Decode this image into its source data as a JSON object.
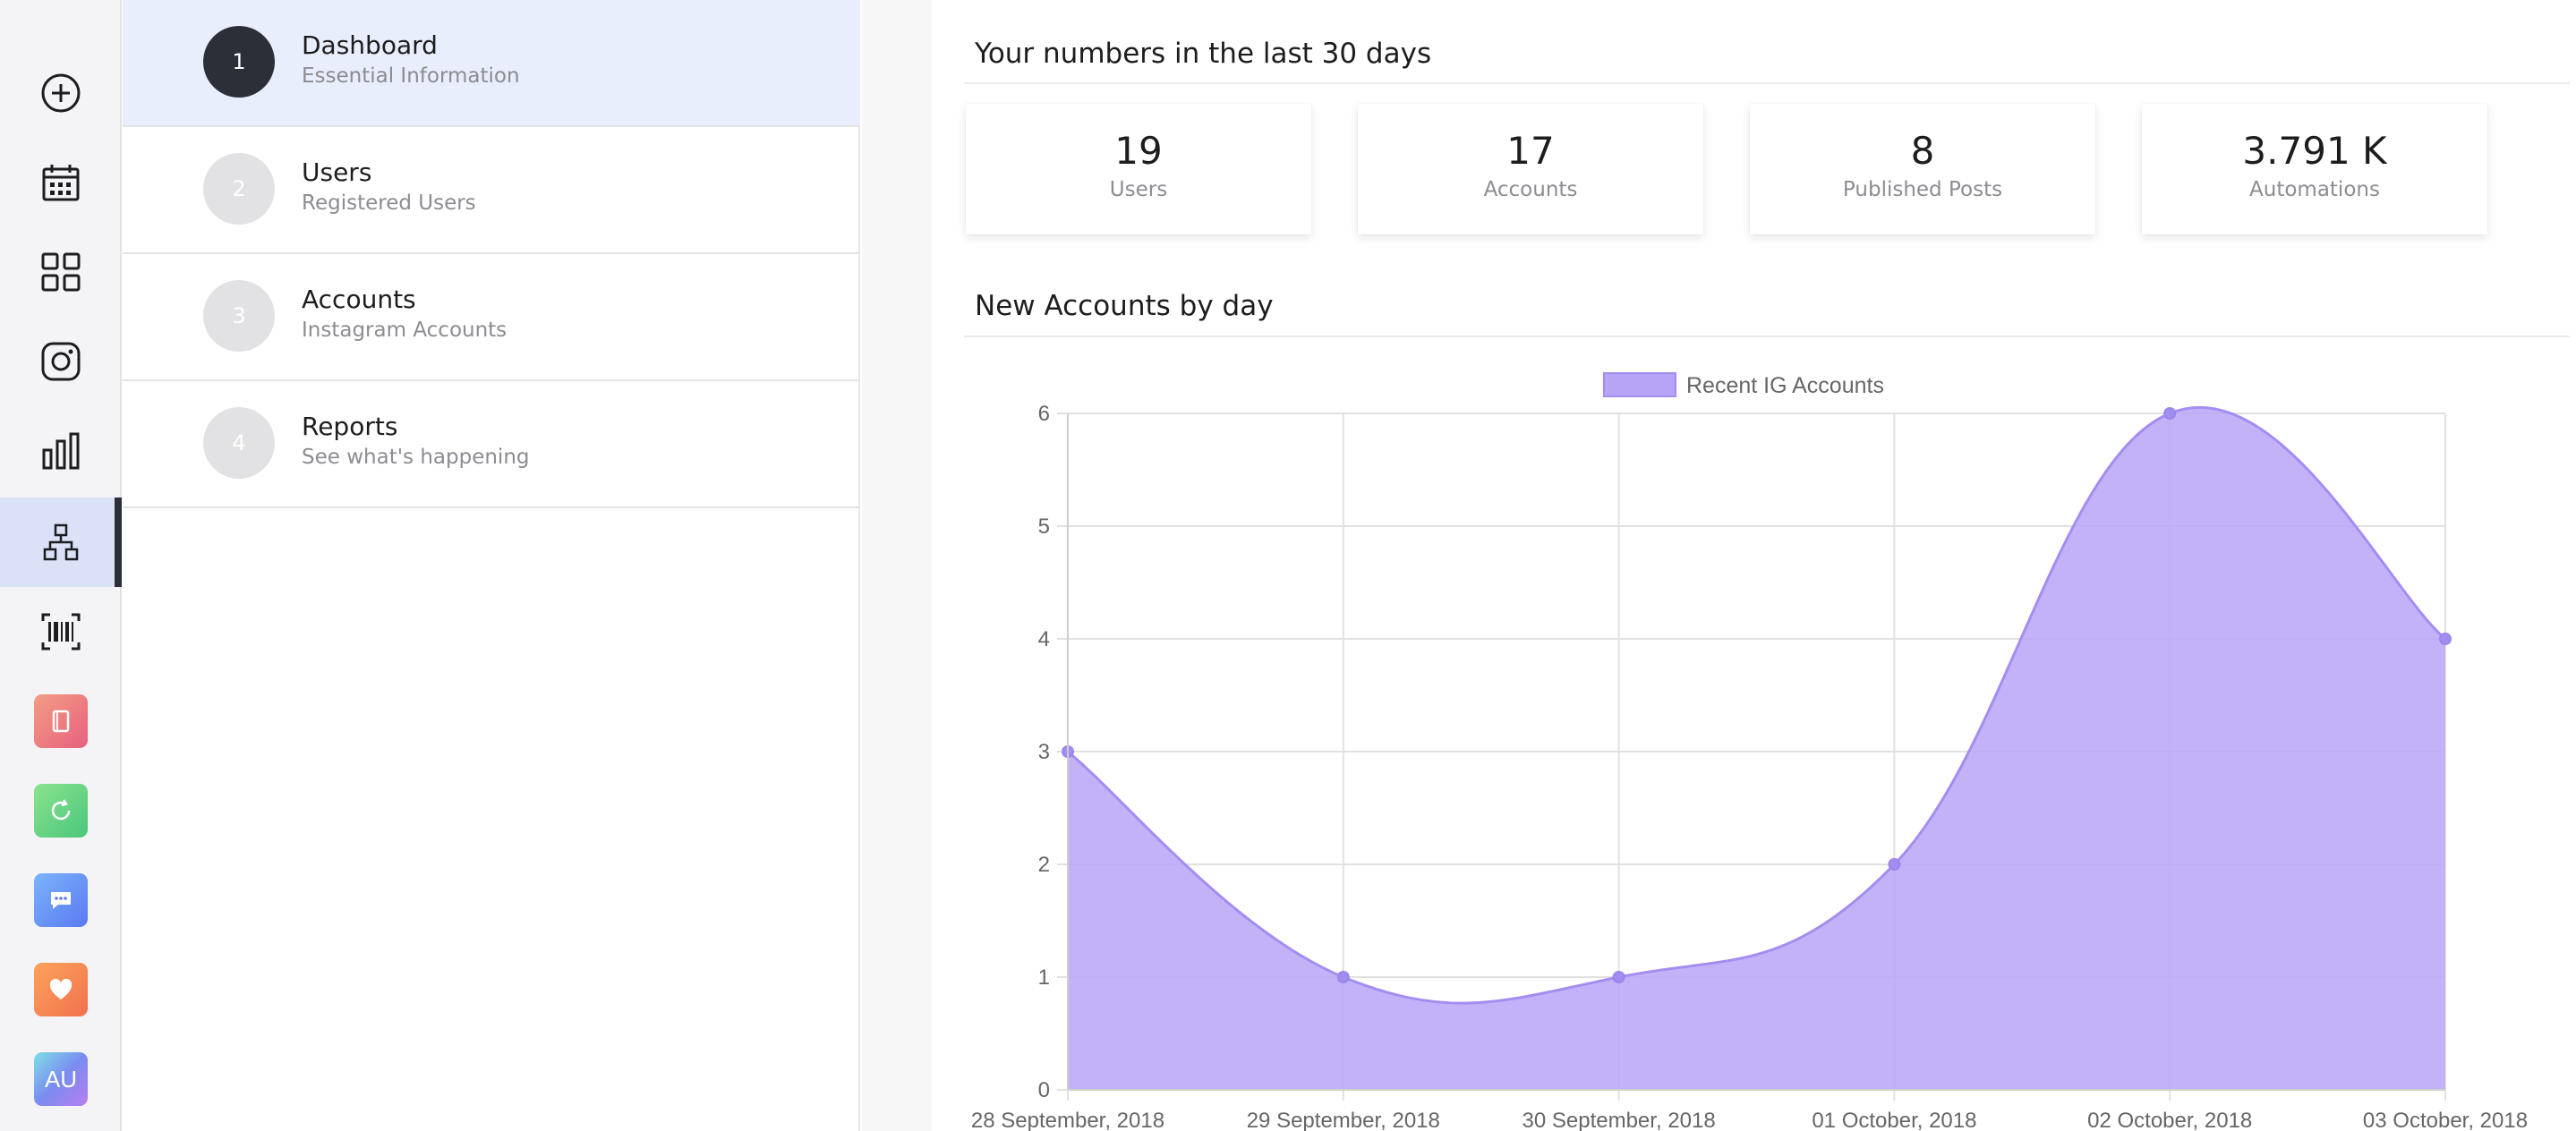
{
  "rail": {
    "icons": [
      "plus-circle-icon",
      "calendar-icon",
      "grid-icon",
      "instagram-icon",
      "bar-chart-icon",
      "hierarchy-icon",
      "barcode-icon",
      "notebook-app-icon",
      "refresh-app-icon",
      "chat-app-icon",
      "heart-app-icon",
      "au-app-icon"
    ],
    "active": "hierarchy-icon",
    "au_label": "AU",
    "colors": {
      "active_bg": "#dbe2f7",
      "active_bar": "#2b2f38"
    }
  },
  "steps": [
    {
      "num": "1",
      "title": "Dashboard",
      "subtitle": "Essential Information",
      "active": true
    },
    {
      "num": "2",
      "title": "Users",
      "subtitle": "Registered Users",
      "active": false
    },
    {
      "num": "3",
      "title": "Accounts",
      "subtitle": "Instagram Accounts",
      "active": false
    },
    {
      "num": "4",
      "title": "Reports",
      "subtitle": "See what's happening",
      "active": false
    }
  ],
  "stats_section": {
    "title": "Your numbers in the last 30 days",
    "cards": [
      {
        "value": "19",
        "label": "Users"
      },
      {
        "value": "17",
        "label": "Accounts"
      },
      {
        "value": "8",
        "label": "Published Posts"
      },
      {
        "value": "3.791 K",
        "label": "Automations"
      }
    ]
  },
  "chart_section": {
    "title": "New Accounts by day"
  },
  "chart_data": {
    "type": "area",
    "x": [
      "28 September, 2018",
      "29 September, 2018",
      "30 September, 2018",
      "01 October, 2018",
      "02 October, 2018",
      "03 October, 2018"
    ],
    "series": [
      {
        "name": "Recent IG Accounts",
        "values": [
          3,
          1,
          1,
          2,
          6,
          4
        ],
        "color": "#b8a4f7",
        "line_color": "#a48df0"
      }
    ],
    "ylim": [
      0,
      6
    ],
    "yticks": [
      "0",
      "1",
      "2",
      "3",
      "4",
      "5",
      "6"
    ],
    "grid": true,
    "legend": "top-center",
    "smooth": true
  }
}
